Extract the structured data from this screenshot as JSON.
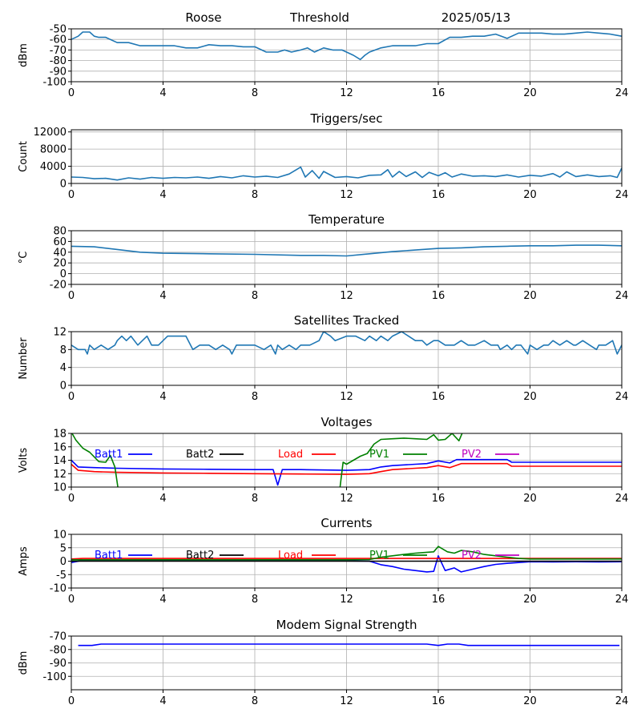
{
  "header": {
    "station": "Roose",
    "parameter": "Threshold",
    "date": "2025/05/13"
  },
  "colors": {
    "default_series": "#1f77b4",
    "grid": "#b0b0b0",
    "axes": "#000000",
    "blue": "#0000ff",
    "black": "#000000",
    "red": "#ff0000",
    "green": "#008000",
    "magenta": "#bf00bf"
  },
  "chart_data": [
    {
      "id": "threshold",
      "type": "line",
      "title": "",
      "xlabel": "",
      "ylabel": "dBm",
      "xlim": [
        0,
        24
      ],
      "ylim": [
        -100,
        -50
      ],
      "xticks": [
        "0",
        "4",
        "8",
        "12",
        "16",
        "20",
        "24"
      ],
      "yticks": [
        "-100",
        "-90",
        "-80",
        "-70",
        "-60",
        "-50"
      ],
      "grid": true,
      "series": [
        {
          "color": "#1f77b4",
          "x": [
            0,
            0.3,
            0.5,
            0.8,
            1.0,
            1.2,
            1.5,
            2.0,
            2.5,
            3.0,
            3.5,
            4.0,
            4.5,
            5.0,
            5.5,
            6.0,
            6.5,
            7.0,
            7.5,
            8.0,
            8.5,
            9.0,
            9.3,
            9.6,
            10.0,
            10.3,
            10.6,
            11.0,
            11.4,
            11.8,
            12.0,
            12.3,
            12.6,
            12.8,
            13.0,
            13.5,
            14.0,
            14.5,
            15.0,
            15.5,
            16.0,
            16.5,
            17.0,
            17.5,
            18.0,
            18.5,
            19.0,
            19.5,
            20.0,
            20.5,
            21.0,
            21.5,
            22.0,
            22.5,
            23.0,
            23.5,
            24.0
          ],
          "y": [
            -60,
            -57,
            -53,
            -53,
            -57,
            -58,
            -58,
            -63,
            -63,
            -66,
            -66,
            -66,
            -66,
            -68,
            -68,
            -65,
            -66,
            -66,
            -67,
            -67,
            -72,
            -72,
            -70,
            -72,
            -70,
            -68,
            -72,
            -68,
            -70,
            -70,
            -72,
            -75,
            -79,
            -75,
            -72,
            -68,
            -66,
            -66,
            -66,
            -64,
            -64,
            -58,
            -58,
            -57,
            -57,
            -55,
            -59,
            -54,
            -54,
            -54,
            -55,
            -55,
            -54,
            -53,
            -54,
            -55,
            -57
          ]
        }
      ]
    },
    {
      "id": "triggers",
      "type": "line",
      "title": "Triggers/sec",
      "xlabel": "",
      "ylabel": "Count",
      "xlim": [
        0,
        24
      ],
      "ylim": [
        0,
        12500
      ],
      "xticks": [
        "0",
        "4",
        "8",
        "12",
        "16",
        "20",
        "24"
      ],
      "yticks": [
        "0",
        "4000",
        "8000",
        "12000"
      ],
      "grid": true,
      "series": [
        {
          "color": "#1f77b4",
          "x": [
            0,
            0.5,
            1.0,
            1.5,
            2.0,
            2.5,
            3.0,
            3.5,
            4.0,
            4.5,
            5.0,
            5.5,
            6.0,
            6.5,
            7.0,
            7.5,
            8.0,
            8.5,
            9.0,
            9.5,
            10.0,
            10.2,
            10.5,
            10.8,
            11.0,
            11.5,
            12.0,
            12.5,
            13.0,
            13.5,
            13.8,
            14.0,
            14.3,
            14.6,
            15.0,
            15.3,
            15.6,
            16.0,
            16.3,
            16.6,
            17.0,
            17.5,
            18.0,
            18.5,
            19.0,
            19.5,
            20.0,
            20.5,
            21.0,
            21.3,
            21.6,
            22.0,
            22.5,
            23.0,
            23.5,
            23.8,
            24.0
          ],
          "y": [
            1500,
            1400,
            1100,
            1200,
            800,
            1300,
            1000,
            1400,
            1200,
            1400,
            1300,
            1500,
            1200,
            1600,
            1300,
            1800,
            1500,
            1700,
            1400,
            2200,
            3800,
            1500,
            3000,
            1200,
            2800,
            1400,
            1600,
            1300,
            1900,
            2000,
            3200,
            1500,
            2800,
            1600,
            2700,
            1400,
            2600,
            1800,
            2500,
            1500,
            2200,
            1700,
            1800,
            1600,
            2000,
            1500,
            1900,
            1700,
            2300,
            1500,
            2700,
            1600,
            2000,
            1600,
            1800,
            1400,
            3600
          ]
        }
      ]
    },
    {
      "id": "temperature",
      "type": "line",
      "title": "Temperature",
      "xlabel": "",
      "ylabel": "°C",
      "xlim": [
        0,
        24
      ],
      "ylim": [
        -20,
        80
      ],
      "xticks": [
        "0",
        "4",
        "8",
        "12",
        "16",
        "20",
        "24"
      ],
      "yticks": [
        "-20",
        "0",
        "20",
        "40",
        "60",
        "80"
      ],
      "grid": true,
      "series": [
        {
          "color": "#1f77b4",
          "x": [
            0,
            1,
            2,
            3,
            4,
            6,
            8,
            10,
            11,
            12,
            13,
            14,
            15,
            16,
            17,
            18,
            19,
            20,
            21,
            22,
            23,
            24
          ],
          "y": [
            51,
            50,
            45,
            40,
            38,
            37,
            36,
            34,
            34,
            33,
            37,
            41,
            44,
            47,
            48,
            50,
            51,
            52,
            52,
            53,
            53,
            52
          ]
        }
      ]
    },
    {
      "id": "satellites",
      "type": "line",
      "title": "Satellites Tracked",
      "xlabel": "",
      "ylabel": "Number",
      "xlim": [
        0,
        24
      ],
      "ylim": [
        0,
        12
      ],
      "xticks": [
        "0",
        "4",
        "8",
        "12",
        "16",
        "20",
        "24"
      ],
      "yticks": [
        "0",
        "4",
        "8",
        "12"
      ],
      "grid": true,
      "series": [
        {
          "color": "#1f77b4",
          "x": [
            0,
            0.3,
            0.6,
            0.7,
            0.8,
            1.0,
            1.3,
            1.6,
            1.9,
            2.0,
            2.2,
            2.4,
            2.6,
            2.9,
            3.1,
            3.3,
            3.5,
            3.8,
            4.2,
            5.0,
            5.2,
            5.3,
            5.6,
            6.0,
            6.3,
            6.6,
            6.9,
            7.0,
            7.2,
            7.5,
            7.8,
            8.0,
            8.4,
            8.7,
            8.9,
            9.0,
            9.2,
            9.5,
            9.8,
            10.0,
            10.2,
            10.4,
            10.8,
            11.0,
            11.3,
            11.5,
            12.0,
            12.4,
            12.8,
            13.0,
            13.3,
            13.5,
            13.8,
            14.0,
            14.4,
            14.7,
            15.0,
            15.3,
            15.5,
            15.8,
            16.0,
            16.3,
            16.7,
            17.0,
            17.3,
            17.6,
            18.0,
            18.3,
            18.6,
            18.7,
            19.0,
            19.2,
            19.4,
            19.6,
            19.9,
            20.0,
            20.3,
            20.6,
            20.8,
            21.0,
            21.3,
            21.6,
            21.9,
            22.0,
            22.3,
            22.6,
            22.9,
            23.0,
            23.3,
            23.6,
            23.8,
            24.0
          ],
          "y": [
            9,
            8,
            8,
            7,
            9,
            8,
            9,
            8,
            9,
            10,
            11,
            10,
            11,
            9,
            10,
            11,
            9,
            9,
            11,
            11,
            9,
            8,
            9,
            9,
            8,
            9,
            8,
            7,
            9,
            9,
            9,
            9,
            8,
            9,
            7,
            9,
            8,
            9,
            8,
            9,
            9,
            9,
            10,
            12,
            11,
            10,
            11,
            11,
            10,
            11,
            10,
            11,
            10,
            11,
            12,
            11,
            10,
            10,
            9,
            10,
            10,
            9,
            9,
            10,
            9,
            9,
            10,
            9,
            9,
            8,
            9,
            8,
            9,
            9,
            7,
            9,
            8,
            9,
            9,
            10,
            9,
            10,
            9,
            9,
            10,
            9,
            8,
            9,
            9,
            10,
            7,
            9
          ]
        }
      ]
    },
    {
      "id": "voltages",
      "type": "line",
      "title": "Voltages",
      "xlabel": "",
      "ylabel": "Volts",
      "xlim": [
        0,
        24
      ],
      "ylim": [
        10,
        18
      ],
      "xticks": [
        "0",
        "4",
        "8",
        "12",
        "16",
        "20",
        "24"
      ],
      "yticks": [
        "10",
        "12",
        "14",
        "16",
        "18"
      ],
      "grid": true,
      "legend": "top, single row",
      "series": [
        {
          "name": "Batt1",
          "color": "#0000ff",
          "x": [
            0,
            0.3,
            1,
            2,
            4,
            6,
            8,
            8.8,
            9.0,
            9.2,
            10,
            12,
            13,
            13.5,
            14,
            15,
            15.5,
            16,
            16.5,
            16.8,
            17,
            18,
            19,
            19.2,
            20,
            22,
            24
          ],
          "y": [
            14,
            13,
            12.9,
            12.8,
            12.7,
            12.65,
            12.6,
            12.6,
            10.3,
            12.6,
            12.6,
            12.5,
            12.6,
            13,
            13.2,
            13.4,
            13.5,
            13.9,
            13.6,
            14.1,
            14.1,
            14.1,
            14.1,
            13.7,
            13.7,
            13.7,
            13.7
          ]
        },
        {
          "name": "Batt2",
          "color": "#000000",
          "x": [],
          "y": []
        },
        {
          "name": "Load",
          "color": "#ff0000",
          "x": [
            0,
            0.3,
            1,
            2,
            4,
            6,
            8,
            10,
            12,
            13,
            13.5,
            14,
            15,
            15.5,
            16,
            16.5,
            17,
            18,
            19,
            19.2,
            20,
            22,
            24
          ],
          "y": [
            13.4,
            12.5,
            12.3,
            12.2,
            12.1,
            12.05,
            12.0,
            11.95,
            11.9,
            12.0,
            12.3,
            12.6,
            12.8,
            12.9,
            13.2,
            12.9,
            13.5,
            13.5,
            13.5,
            13.1,
            13.1,
            13.1,
            13.1
          ]
        },
        {
          "name": "PV1",
          "color": "#008000",
          "x": [
            0,
            0.2,
            0.5,
            0.8,
            1.0,
            1.2,
            1.5,
            1.7,
            1.9,
            2.05,
            11.7,
            11.85,
            12.0,
            12.3,
            12.6,
            12.9,
            13.2,
            13.5,
            14.0,
            14.5,
            15.0,
            15.5,
            15.8,
            16.0,
            16.3,
            16.6,
            16.9,
            17.1,
            17.2
          ],
          "y": [
            18.2,
            17,
            15.8,
            15.2,
            14.5,
            13.8,
            13.7,
            14.7,
            13,
            9.5,
            9.5,
            13.7,
            13.4,
            14,
            14.6,
            15,
            16.4,
            17.1,
            17.2,
            17.3,
            17.2,
            17.1,
            17.8,
            17.0,
            17.1,
            18.0,
            16.9,
            18.5,
            18.5
          ]
        },
        {
          "name": "PV2",
          "color": "#bf00bf",
          "x": [],
          "y": []
        }
      ]
    },
    {
      "id": "currents",
      "type": "line",
      "title": "Currents",
      "xlabel": "",
      "ylabel": "Amps",
      "xlim": [
        0,
        24
      ],
      "ylim": [
        -10,
        10
      ],
      "xticks": [
        "0",
        "4",
        "8",
        "12",
        "16",
        "20",
        "24"
      ],
      "yticks": [
        "-10",
        "-5",
        "0",
        "5",
        "10"
      ],
      "grid": true,
      "legend": "top, single row",
      "series": [
        {
          "name": "Batt1",
          "color": "#0000ff",
          "x": [
            0,
            0.5,
            1,
            4,
            8,
            12,
            13,
            13.5,
            14,
            14.5,
            15,
            15.5,
            15.8,
            16,
            16.3,
            16.7,
            17,
            17.5,
            18,
            18.5,
            19,
            19.5,
            20,
            21,
            22,
            23,
            24
          ],
          "y": [
            -0.5,
            0.3,
            0.2,
            0.2,
            0.2,
            0.1,
            0,
            -1.3,
            -2,
            -3,
            -3.5,
            -4,
            -3.8,
            2,
            -3.5,
            -2.5,
            -4,
            -3,
            -2,
            -1.2,
            -0.8,
            -0.5,
            -0.2,
            -0.3,
            -0.2,
            -0.3,
            -0.2
          ]
        },
        {
          "name": "Batt2",
          "color": "#000000",
          "x": [
            0,
            24
          ],
          "y": [
            0,
            0
          ]
        },
        {
          "name": "Load",
          "color": "#ff0000",
          "x": [
            0,
            0.5,
            24
          ],
          "y": [
            0.8,
            1,
            1
          ]
        },
        {
          "name": "PV1",
          "color": "#008000",
          "x": [
            0,
            12,
            13,
            13.5,
            14,
            14.5,
            15,
            15.5,
            15.8,
            16,
            16.4,
            16.7,
            17,
            17.5,
            18,
            18.5,
            19,
            19.5,
            20,
            24
          ],
          "y": [
            0.5,
            0.5,
            0.6,
            1.5,
            2,
            2.5,
            3,
            3.3,
            3.5,
            5.5,
            3.5,
            3,
            4,
            3.5,
            2.5,
            2,
            1.5,
            1,
            0.8,
            0.8
          ]
        },
        {
          "name": "PV2",
          "color": "#bf00bf",
          "x": [],
          "y": []
        }
      ]
    },
    {
      "id": "modem",
      "type": "line",
      "title": "Modem Signal Strength",
      "xlabel": "",
      "ylabel": "dBm",
      "xlim": [
        0,
        24
      ],
      "ylim": [
        -110,
        -70
      ],
      "xticks": [
        "0",
        "4",
        "8",
        "12",
        "16",
        "20",
        "24"
      ],
      "yticks": [
        "-100",
        "-90",
        "-80",
        "-70"
      ],
      "grid": true,
      "series": [
        {
          "color": "#0000ff",
          "x": [
            0.3,
            0.9,
            1.3,
            15.5,
            16.0,
            16.4,
            16.9,
            17.3,
            23.9
          ],
          "y": [
            -77,
            -77,
            -76,
            -76,
            -77,
            -76,
            -76,
            -77,
            -77
          ]
        }
      ]
    }
  ]
}
